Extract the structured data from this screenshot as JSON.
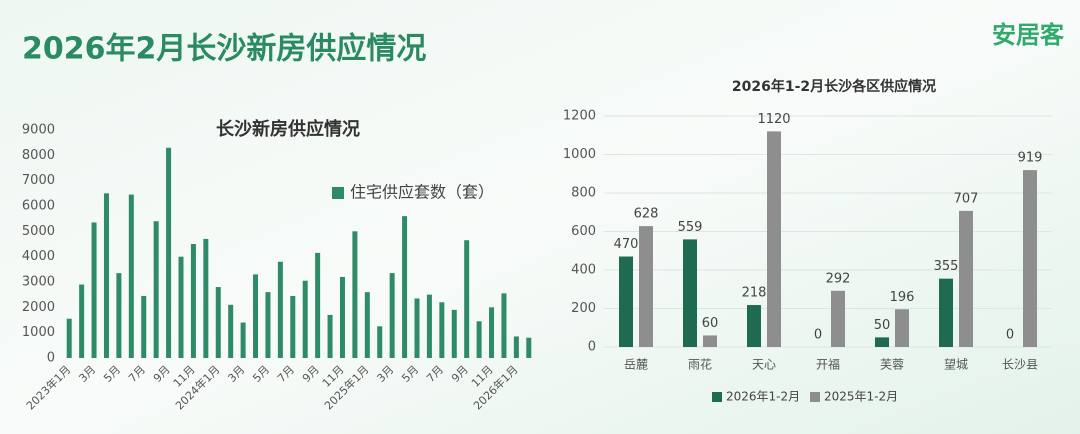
{
  "header": {
    "title": "2026年2月长沙新房供应情况",
    "logo": "安居客"
  },
  "chart_data": [
    {
      "type": "bar",
      "title": "长沙新房供应情况",
      "categories": [
        "2023年1月",
        null,
        "3月",
        null,
        "5月",
        null,
        "7月",
        null,
        "9月",
        null,
        "11月",
        null,
        "2024年1月",
        null,
        "3月",
        null,
        "5月",
        null,
        "7月",
        null,
        "9月",
        null,
        "11月",
        null,
        "2025年1月",
        null,
        "3月",
        null,
        "5月",
        null,
        "7月",
        null,
        "9月",
        null,
        "11月",
        null,
        "2026年1月",
        null
      ],
      "series": [
        {
          "name": "住宅供应套数（套）",
          "color": "#2e8b68",
          "values": [
            1550,
            2900,
            5350,
            6500,
            3350,
            6450,
            2450,
            5400,
            8300,
            4000,
            4500,
            4700,
            2800,
            2100,
            1400,
            3300,
            2600,
            3800,
            2450,
            3050,
            4150,
            1700,
            3200,
            5000,
            2600,
            1250,
            3350,
            5600,
            2350,
            2500,
            2200,
            1900,
            4650,
            1450,
            2000,
            2550,
            850,
            800
          ]
        }
      ],
      "ylim": [
        0,
        9000
      ],
      "yticks": [
        0,
        1000,
        2000,
        3000,
        4000,
        5000,
        6000,
        7000,
        8000,
        9000
      ],
      "grid": false
    },
    {
      "type": "grouped_bar",
      "title": "2026年1-2月长沙各区供应情况",
      "categories": [
        "岳麓",
        "雨花",
        "天心",
        "开福",
        "芙蓉",
        "望城",
        "长沙县"
      ],
      "series": [
        {
          "name": "2026年1-2月",
          "color": "#1f6b52",
          "values": [
            470,
            559,
            218,
            0,
            50,
            355,
            0
          ]
        },
        {
          "name": "2025年1-2月",
          "color": "#8e8e8e",
          "values": [
            628,
            60,
            1120,
            292,
            196,
            707,
            919
          ]
        }
      ],
      "ylim": [
        0,
        1200
      ],
      "yticks": [
        0,
        200,
        400,
        600,
        800,
        1000,
        1200
      ],
      "grid": true
    }
  ]
}
